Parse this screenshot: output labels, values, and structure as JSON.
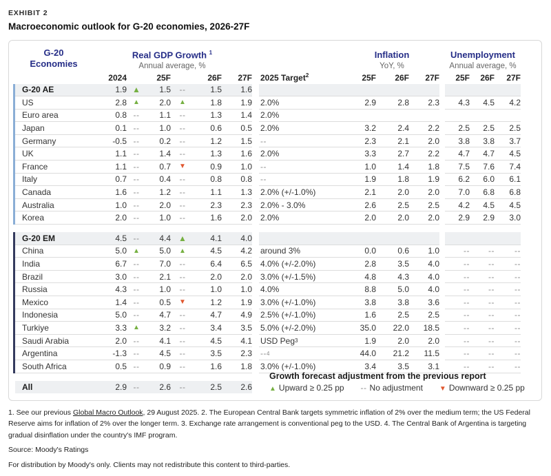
{
  "exhibit_label": "EXHIBIT 2",
  "title": "Macroeconomic outlook for G-20 economies, 2026-27F",
  "colors": {
    "navy": "#252d87",
    "green": "#76b042",
    "orange": "#e0572f",
    "accent_ae": "#8aaed6",
    "accent_em": "#343a5e",
    "section_bg": "#eef0f2"
  },
  "icons": {
    "up": "▲",
    "down": "▼",
    "dash": "--"
  },
  "table": {
    "group_headers": {
      "economies_line1": "G-20",
      "economies_line2": "Economies",
      "gdp_title": "Real GDP Growth",
      "gdp_sup": "1",
      "gdp_sub": "Annual average, %",
      "inflation_title": "Inflation",
      "inflation_sub": "YoY, %",
      "unemployment_title": "Unemployment",
      "unemployment_sub": "Annual average, %"
    },
    "col_headers": {
      "gdp": [
        "2024",
        "25F",
        "26F",
        "27F"
      ],
      "target": "2025 Target",
      "target_sup": "2",
      "inflation": [
        "25F",
        "26F",
        "27F"
      ],
      "unemployment": [
        "25F",
        "26F",
        "27F"
      ]
    },
    "sections": [
      {
        "accent": "ae",
        "rows": [
          {
            "type": "section",
            "name": "G-20 AE",
            "g2024": "1.9",
            "adj25": "up",
            "g25": "1.5",
            "adj26": "--",
            "g26": "1.5",
            "g27": "1.6",
            "target": "",
            "i25": "",
            "i26": "",
            "i27": "",
            "u25": "",
            "u26": "",
            "u27": ""
          },
          {
            "type": "data",
            "name": "US",
            "g2024": "2.8",
            "adj25": "up",
            "g25": "2.0",
            "adj26": "up",
            "g26": "1.8",
            "g27": "1.9",
            "target": "2.0%",
            "i25": "2.9",
            "i26": "2.8",
            "i27": "2.3",
            "u25": "4.3",
            "u26": "4.5",
            "u27": "4.2"
          },
          {
            "type": "data",
            "name": "Euro area",
            "g2024": "0.8",
            "adj25": "--",
            "g25": "1.1",
            "adj26": "--",
            "g26": "1.3",
            "g27": "1.4",
            "target": "2.0%",
            "i25": "",
            "i26": "",
            "i27": "",
            "u25": "",
            "u26": "",
            "u27": ""
          },
          {
            "type": "data",
            "name": "Japan",
            "g2024": "0.1",
            "adj25": "--",
            "g25": "1.0",
            "adj26": "--",
            "g26": "0.6",
            "g27": "0.5",
            "target": "2.0%",
            "i25": "3.2",
            "i26": "2.4",
            "i27": "2.2",
            "u25": "2.5",
            "u26": "2.5",
            "u27": "2.5"
          },
          {
            "type": "data",
            "name": "Germany",
            "g2024": "-0.5",
            "adj25": "--",
            "g25": "0.2",
            "adj26": "--",
            "g26": "1.2",
            "g27": "1.5",
            "target": "--",
            "i25": "2.3",
            "i26": "2.1",
            "i27": "2.0",
            "u25": "3.8",
            "u26": "3.8",
            "u27": "3.7"
          },
          {
            "type": "data",
            "name": "UK",
            "g2024": "1.1",
            "adj25": "--",
            "g25": "1.4",
            "adj26": "--",
            "g26": "1.3",
            "g27": "1.6",
            "target": "2.0%",
            "i25": "3.3",
            "i26": "2.7",
            "i27": "2.2",
            "u25": "4.7",
            "u26": "4.7",
            "u27": "4.5"
          },
          {
            "type": "data",
            "name": "France",
            "g2024": "1.1",
            "adj25": "--",
            "g25": "0.7",
            "adj26": "down",
            "g26": "0.9",
            "g27": "1.0",
            "target": "--",
            "i25": "1.0",
            "i26": "1.4",
            "i27": "1.8",
            "u25": "7.5",
            "u26": "7.6",
            "u27": "7.4"
          },
          {
            "type": "data",
            "name": "Italy",
            "g2024": "0.7",
            "adj25": "--",
            "g25": "0.4",
            "adj26": "--",
            "g26": "0.8",
            "g27": "0.8",
            "target": "--",
            "i25": "1.9",
            "i26": "1.8",
            "i27": "1.9",
            "u25": "6.2",
            "u26": "6.0",
            "u27": "6.1"
          },
          {
            "type": "data",
            "name": "Canada",
            "g2024": "1.6",
            "adj25": "--",
            "g25": "1.2",
            "adj26": "--",
            "g26": "1.1",
            "g27": "1.3",
            "target": "2.0% (+/-1.0%)",
            "i25": "2.1",
            "i26": "2.0",
            "i27": "2.0",
            "u25": "7.0",
            "u26": "6.8",
            "u27": "6.8"
          },
          {
            "type": "data",
            "name": "Australia",
            "g2024": "1.0",
            "adj25": "--",
            "g25": "2.0",
            "adj26": "--",
            "g26": "2.3",
            "g27": "2.3",
            "target": "2.0% - 3.0%",
            "i25": "2.6",
            "i26": "2.5",
            "i27": "2.5",
            "u25": "4.2",
            "u26": "4.5",
            "u27": "4.5"
          },
          {
            "type": "data",
            "name": "Korea",
            "g2024": "2.0",
            "adj25": "--",
            "g25": "1.0",
            "adj26": "--",
            "g26": "1.6",
            "g27": "2.0",
            "target": "2.0%",
            "i25": "2.0",
            "i26": "2.0",
            "i27": "2.0",
            "u25": "2.9",
            "u26": "2.9",
            "u27": "3.0"
          }
        ]
      },
      {
        "accent": "em",
        "rows": [
          {
            "type": "section",
            "name": "G-20 EM",
            "g2024": "4.5",
            "adj25": "--",
            "g25": "4.4",
            "adj26": "up",
            "g26": "4.1",
            "g27": "4.0",
            "target": "",
            "i25": "",
            "i26": "",
            "i27": "",
            "u25": "",
            "u26": "",
            "u27": ""
          },
          {
            "type": "data",
            "name": "China",
            "g2024": "5.0",
            "adj25": "up",
            "g25": "5.0",
            "adj26": "up",
            "g26": "4.5",
            "g27": "4.2",
            "target": "around 3%",
            "i25": "0.0",
            "i26": "0.6",
            "i27": "1.0",
            "u25": "--",
            "u26": "--",
            "u27": "--"
          },
          {
            "type": "data",
            "name": "India",
            "g2024": "6.7",
            "adj25": "--",
            "g25": "7.0",
            "adj26": "--",
            "g26": "6.4",
            "g27": "6.5",
            "target": "4.0% (+/-2.0%)",
            "i25": "2.8",
            "i26": "3.5",
            "i27": "4.0",
            "u25": "--",
            "u26": "--",
            "u27": "--"
          },
          {
            "type": "data",
            "name": "Brazil",
            "g2024": "3.0",
            "adj25": "--",
            "g25": "2.1",
            "adj26": "--",
            "g26": "2.0",
            "g27": "2.0",
            "target": "3.0% (+/-1.5%)",
            "i25": "4.8",
            "i26": "4.3",
            "i27": "4.0",
            "u25": "--",
            "u26": "--",
            "u27": "--"
          },
          {
            "type": "data",
            "name": "Russia",
            "g2024": "4.3",
            "adj25": "--",
            "g25": "1.0",
            "adj26": "--",
            "g26": "1.0",
            "g27": "1.0",
            "target": "4.0%",
            "i25": "8.8",
            "i26": "5.0",
            "i27": "4.0",
            "u25": "--",
            "u26": "--",
            "u27": "--"
          },
          {
            "type": "data",
            "name": "Mexico",
            "g2024": "1.4",
            "adj25": "--",
            "g25": "0.5",
            "adj26": "down",
            "g26": "1.2",
            "g27": "1.9",
            "target": "3.0% (+/-1.0%)",
            "i25": "3.8",
            "i26": "3.8",
            "i27": "3.6",
            "u25": "--",
            "u26": "--",
            "u27": "--"
          },
          {
            "type": "data",
            "name": "Indonesia",
            "g2024": "5.0",
            "adj25": "--",
            "g25": "4.7",
            "adj26": "--",
            "g26": "4.7",
            "g27": "4.9",
            "target": "2.5% (+/-1.0%)",
            "i25": "1.6",
            "i26": "2.5",
            "i27": "2.5",
            "u25": "--",
            "u26": "--",
            "u27": "--"
          },
          {
            "type": "data",
            "name": "Turkiye",
            "g2024": "3.3",
            "adj25": "up",
            "g25": "3.2",
            "adj26": "--",
            "g26": "3.4",
            "g27": "3.5",
            "target": "5.0% (+/-2.0%)",
            "i25": "35.0",
            "i26": "22.0",
            "i27": "18.5",
            "u25": "--",
            "u26": "--",
            "u27": "--"
          },
          {
            "type": "data",
            "name": "Saudi Arabia",
            "g2024": "2.0",
            "adj25": "--",
            "g25": "4.1",
            "adj26": "--",
            "g26": "4.5",
            "g27": "4.1",
            "target": "USD Peg",
            "target_sup": "3",
            "i25": "1.9",
            "i26": "2.0",
            "i27": "2.0",
            "u25": "--",
            "u26": "--",
            "u27": "--"
          },
          {
            "type": "data",
            "name": "Argentina",
            "g2024": "-1.3",
            "adj25": "--",
            "g25": "4.5",
            "adj26": "--",
            "g26": "3.5",
            "g27": "2.3",
            "target": "--",
            "target_sup": "4",
            "i25": "44.0",
            "i26": "21.2",
            "i27": "11.5",
            "u25": "--",
            "u26": "--",
            "u27": "--"
          },
          {
            "type": "data",
            "name": "South Africa",
            "g2024": "0.5",
            "adj25": "--",
            "g25": "0.9",
            "adj26": "--",
            "g26": "1.6",
            "g27": "1.8",
            "target": "3.0% (+/-1.0%)",
            "i25": "3.4",
            "i26": "3.5",
            "i27": "3.1",
            "u25": "--",
            "u26": "--",
            "u27": "--"
          }
        ]
      },
      {
        "accent": "none",
        "rows": [
          {
            "type": "all",
            "name": "All",
            "g2024": "2.9",
            "adj25": "--",
            "g25": "2.6",
            "adj26": "--",
            "g26": "2.5",
            "g27": "2.6",
            "target": "",
            "i25": "",
            "i26": "",
            "i27": "",
            "u25": "",
            "u26": "",
            "u27": ""
          }
        ]
      }
    ]
  },
  "legend": {
    "title": "Growth forecast adjustment from the previous report",
    "upward": "Upward ≥ 0.25 pp",
    "no_adjustment": "No adjustment",
    "downward": "Downward ≥ 0.25 pp"
  },
  "footnotes": {
    "pre_link": "1. See our previous ",
    "link_text": "Global Macro Outlook",
    "post_link": ", 29 August 2025. 2. The European Central Bank targets symmetric inflation of 2% over the medium term; the US Federal Reserve aims for inflation of 2% over the longer term. 3. Exchange rate arrangement is conventional peg to the USD. 4. The Central Bank of Argentina is targeting gradual disinflation under the country's IMF program.",
    "source": "Source: Moody's Ratings",
    "distribution": "For distribution by Moody's only. Clients may not redistribute this content to third-parties."
  }
}
